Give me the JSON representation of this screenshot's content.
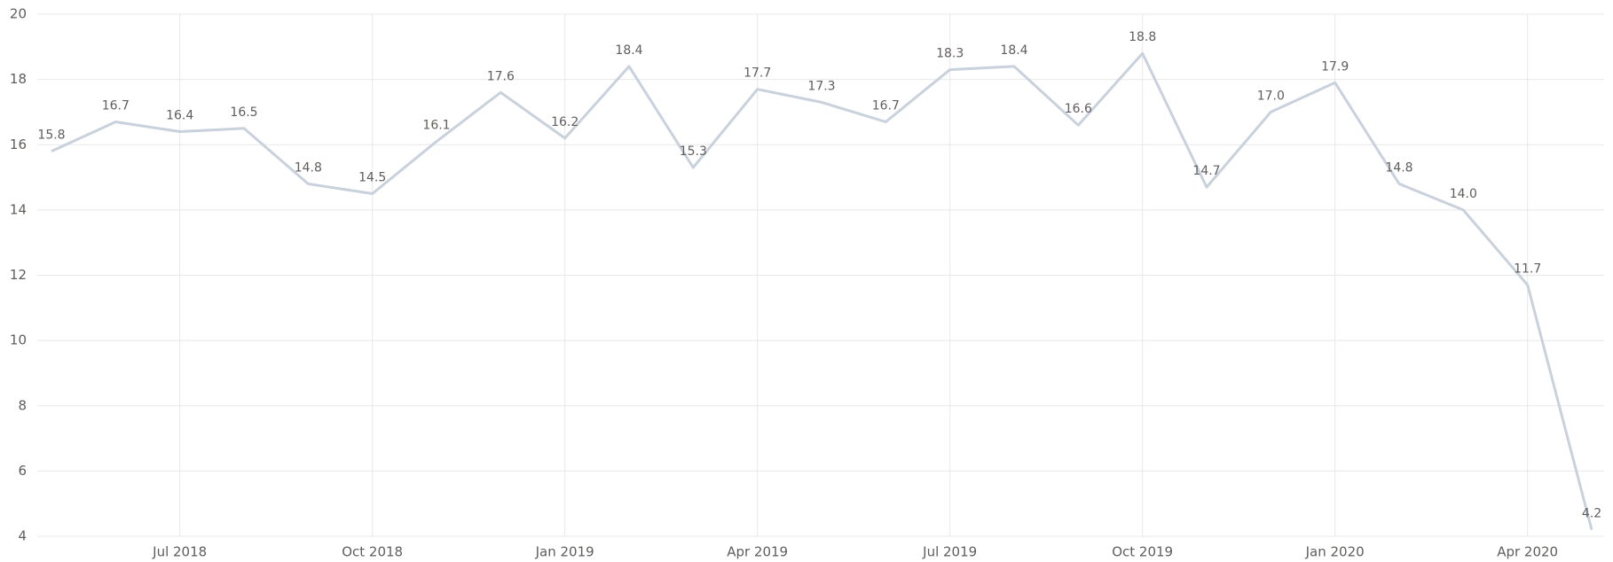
{
  "chart_data": {
    "type": "line",
    "x": [
      "2018-05",
      "2018-06",
      "2018-07",
      "2018-08",
      "2018-09",
      "2018-10",
      "2018-11",
      "2018-12",
      "2019-01",
      "2019-02",
      "2019-03",
      "2019-04",
      "2019-05",
      "2019-06",
      "2019-07",
      "2019-08",
      "2019-09",
      "2019-10",
      "2019-11",
      "2019-12",
      "2020-01",
      "2020-02",
      "2020-03",
      "2020-04",
      "2020-05"
    ],
    "series": [
      {
        "color": "#c9d1dd",
        "values": [
          15.8,
          16.7,
          16.4,
          16.5,
          14.8,
          14.5,
          16.1,
          17.6,
          16.2,
          18.4,
          15.3,
          17.7,
          17.3,
          16.7,
          18.3,
          18.4,
          16.6,
          18.8,
          14.7,
          17.0,
          17.9,
          14.8,
          14.0,
          11.7,
          4.2
        ],
        "value_labels": [
          "15.8",
          "16.7",
          "16.4",
          "16.5",
          "14.8",
          "14.5",
          "16.1",
          "17.6",
          "16.2",
          "18.4",
          "15.3",
          "17.7",
          "17.3",
          "16.7",
          "18.3",
          "18.4",
          "16.6",
          "18.8",
          "14.7",
          "17.0",
          "17.9",
          "14.8",
          "14.0",
          "11.7",
          "4.2"
        ]
      }
    ],
    "xlim": [
      "2018-05",
      "2020-05"
    ],
    "xticks": [
      {
        "value": "2018-07",
        "label": "Jul 2018"
      },
      {
        "value": "2018-10",
        "label": "Oct 2018"
      },
      {
        "value": "2019-01",
        "label": "Jan 2019"
      },
      {
        "value": "2019-04",
        "label": "Apr 2019"
      },
      {
        "value": "2019-07",
        "label": "Jul 2019"
      },
      {
        "value": "2019-10",
        "label": "Oct 2019"
      },
      {
        "value": "2020-01",
        "label": "Jan 2020"
      },
      {
        "value": "2020-04",
        "label": "Apr 2020"
      }
    ],
    "ylim": [
      4,
      20
    ],
    "yticks": [
      4,
      6,
      8,
      10,
      12,
      14,
      16,
      18,
      20
    ],
    "grid": true
  }
}
